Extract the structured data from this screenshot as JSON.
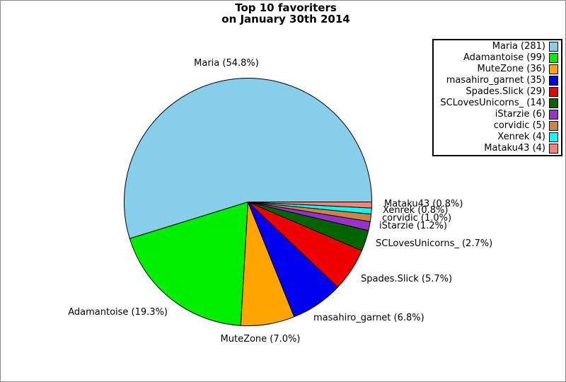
{
  "window": {
    "background": "#ffffff",
    "border_color": "#8a8a8a"
  },
  "title": {
    "line1": "Top 10 favoriters",
    "line2": "on January 30th 2014"
  },
  "chart_data": {
    "type": "pie",
    "title": "Top 10 favoriters on January 30th 2014",
    "start_angle_deg": 0,
    "direction": "counterclockwise",
    "legend_position": "top-right",
    "legend_border_color": "#000000",
    "slices": [
      {
        "name": "Maria",
        "count": 281,
        "percent": 54.8,
        "color": "#87CEEB",
        "legend_label": "Maria (281)",
        "slice_label": "Maria (54.8%)"
      },
      {
        "name": "Adamantoise",
        "count": 99,
        "percent": 19.3,
        "color": "#00EE00",
        "legend_label": "Adamantoise (99)",
        "slice_label": "Adamantoise (19.3%)"
      },
      {
        "name": "MuteZone",
        "count": 36,
        "percent": 7.0,
        "color": "#FFA500",
        "legend_label": "MuteZone (36)",
        "slice_label": "MuteZone (7.0%)"
      },
      {
        "name": "masahiro_garnet",
        "count": 35,
        "percent": 6.8,
        "color": "#0000EE",
        "legend_label": "masahiro_garnet (35)",
        "slice_label": "masahiro_garnet (6.8%)"
      },
      {
        "name": "Spades.Slick",
        "count": 29,
        "percent": 5.7,
        "color": "#EE0000",
        "legend_label": "Spades.Slick (29)",
        "slice_label": "Spades.Slick (5.7%)"
      },
      {
        "name": "SCLovesUnicorns_",
        "count": 14,
        "percent": 2.7,
        "color": "#006400",
        "legend_label": "SCLovesUnicorns_ (14)",
        "slice_label": "SCLovesUnicorns_ (2.7%)"
      },
      {
        "name": "iStarzie",
        "count": 6,
        "percent": 1.2,
        "color": "#9932CC",
        "legend_label": "iStarzie (6)",
        "slice_label": "iStarzie (1.2%)"
      },
      {
        "name": "corvidic",
        "count": 5,
        "percent": 1.0,
        "color": "#CD853F",
        "legend_label": "corvidic (5)",
        "slice_label": "corvidic (1.0%)"
      },
      {
        "name": "Xenrek",
        "count": 4,
        "percent": 0.8,
        "color": "#00FFFF",
        "legend_label": "Xenrek (4)",
        "slice_label": "Xenrek (0.8%)"
      },
      {
        "name": "Mataku43",
        "count": 4,
        "percent": 0.8,
        "color": "#FA8072",
        "legend_label": "Mataku43 (4)",
        "slice_label": "Mataku43 (0.8%)"
      }
    ]
  }
}
